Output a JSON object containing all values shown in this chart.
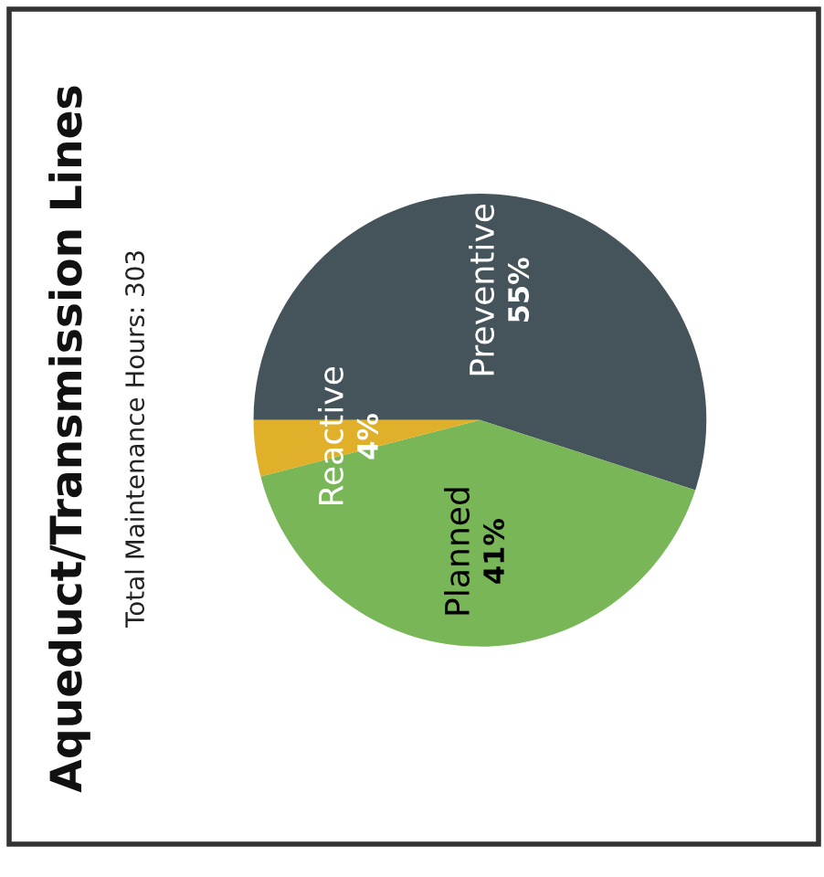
{
  "chart_data": {
    "type": "pie",
    "title": "Aqueduct/Transmission Lines",
    "subtitle": "Total Maintenance Hours: 303",
    "categories": [
      "Preventive",
      "Planned",
      "Reactive"
    ],
    "values": [
      55,
      41,
      4
    ],
    "colors": [
      "#45535a",
      "#78b657",
      "#e0b02a"
    ],
    "value_labels": [
      "55%",
      "41%",
      "4%"
    ]
  }
}
